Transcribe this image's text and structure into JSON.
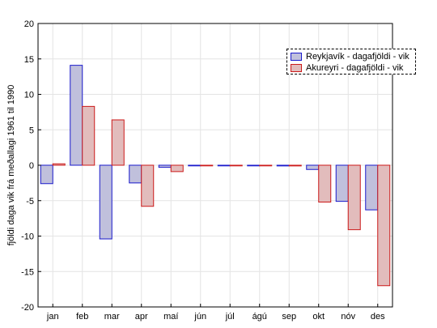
{
  "chart_data": {
    "type": "bar",
    "ylabel": "fjöldi daga vik frá meðallagi 1961 til 1990",
    "xlabel": "",
    "ylim": [
      -20,
      20
    ],
    "yticks": [
      -20,
      -15,
      -10,
      -5,
      0,
      5,
      10,
      15,
      20
    ],
    "grid": true,
    "legend_position": "top-right",
    "categories": [
      "jan",
      "feb",
      "mar",
      "apr",
      "maí",
      "jún",
      "júl",
      "ágú",
      "sep",
      "okt",
      "nóv",
      "des"
    ],
    "series": [
      {
        "name": "Reykjavík - dagafjöldi - vik",
        "fill": "#c0c0dc",
        "stroke": "#1a1acc",
        "values": [
          -2.6,
          14.1,
          -10.4,
          -2.5,
          -0.3,
          0,
          0,
          0,
          -0.1,
          -0.6,
          -5.1,
          -6.3
        ]
      },
      {
        "name": "Akureyri - dagafjöldi - vik",
        "fill": "#e2bcbc",
        "stroke": "#cc1a1a",
        "values": [
          0.2,
          8.3,
          6.4,
          -5.8,
          -0.9,
          0,
          0,
          0,
          -0.1,
          -5.2,
          -9.1,
          -17.0
        ]
      }
    ]
  }
}
